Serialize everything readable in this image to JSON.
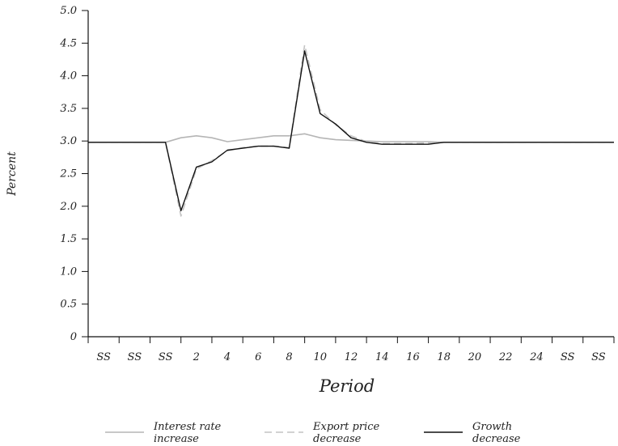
{
  "chart_data": {
    "type": "line",
    "ylabel": "Percent",
    "xlabel": "Period",
    "ylim": [
      0,
      5.0
    ],
    "yticks": [
      "0",
      "0.5",
      "1.0",
      "1.5",
      "2.0",
      "2.5",
      "3.0",
      "3.5",
      "4.0",
      "4.5",
      "5.0"
    ],
    "x_tick_labels": [
      "SS",
      "SS",
      "SS",
      "2",
      "4",
      "6",
      "8",
      "10",
      "12",
      "14",
      "16",
      "18",
      "20",
      "22",
      "24",
      "SS",
      "SS"
    ],
    "x": [
      "SS",
      "SS",
      "SS",
      "SS",
      "SS",
      "SS",
      "1",
      "2",
      "3",
      "4",
      "5",
      "6",
      "7",
      "8",
      "9",
      "10",
      "11",
      "12",
      "13",
      "14",
      "15",
      "16",
      "17",
      "18",
      "19",
      "20",
      "21",
      "22",
      "23",
      "24",
      "25",
      "SS",
      "SS",
      "SS",
      "SS"
    ],
    "series": [
      {
        "name": "Interest rate increase",
        "name_lines": [
          "Interest rate",
          "increase"
        ],
        "color": "#b5b5b5",
        "dash": "solid",
        "values": [
          2.98,
          2.98,
          2.98,
          2.98,
          2.98,
          2.98,
          3.05,
          3.08,
          3.05,
          2.99,
          3.02,
          3.05,
          3.08,
          3.08,
          3.11,
          3.05,
          3.02,
          3.01,
          3.0,
          2.99,
          2.99,
          2.99,
          2.99,
          2.98,
          2.98,
          2.98,
          2.98,
          2.98,
          2.98,
          2.98,
          2.98,
          2.98,
          2.98,
          2.98,
          2.98
        ]
      },
      {
        "name": "Export price decrease",
        "name_lines": [
          "Export price",
          "decrease"
        ],
        "color": "#c4c4c4",
        "dash": "dashed",
        "values": [
          2.98,
          2.98,
          2.98,
          2.98,
          2.98,
          2.98,
          1.85,
          2.57,
          2.7,
          2.85,
          2.9,
          2.92,
          2.92,
          2.9,
          4.47,
          3.48,
          3.25,
          3.08,
          2.99,
          2.96,
          2.96,
          2.96,
          2.97,
          2.98,
          2.98,
          2.98,
          2.98,
          2.98,
          2.98,
          2.98,
          2.98,
          2.98,
          2.98,
          2.98,
          2.98
        ]
      },
      {
        "name": "Growth decrease",
        "name_lines": [
          "Growth",
          "decrease"
        ],
        "color": "#111111",
        "dash": "solid",
        "values": [
          2.98,
          2.98,
          2.98,
          2.98,
          2.98,
          2.98,
          1.93,
          2.6,
          2.68,
          2.86,
          2.89,
          2.92,
          2.92,
          2.89,
          4.38,
          3.42,
          3.26,
          3.05,
          2.98,
          2.95,
          2.95,
          2.95,
          2.95,
          2.98,
          2.98,
          2.98,
          2.98,
          2.98,
          2.98,
          2.98,
          2.98,
          2.98,
          2.98,
          2.98,
          2.98
        ]
      }
    ],
    "grid": false,
    "legend_position": "bottom"
  }
}
